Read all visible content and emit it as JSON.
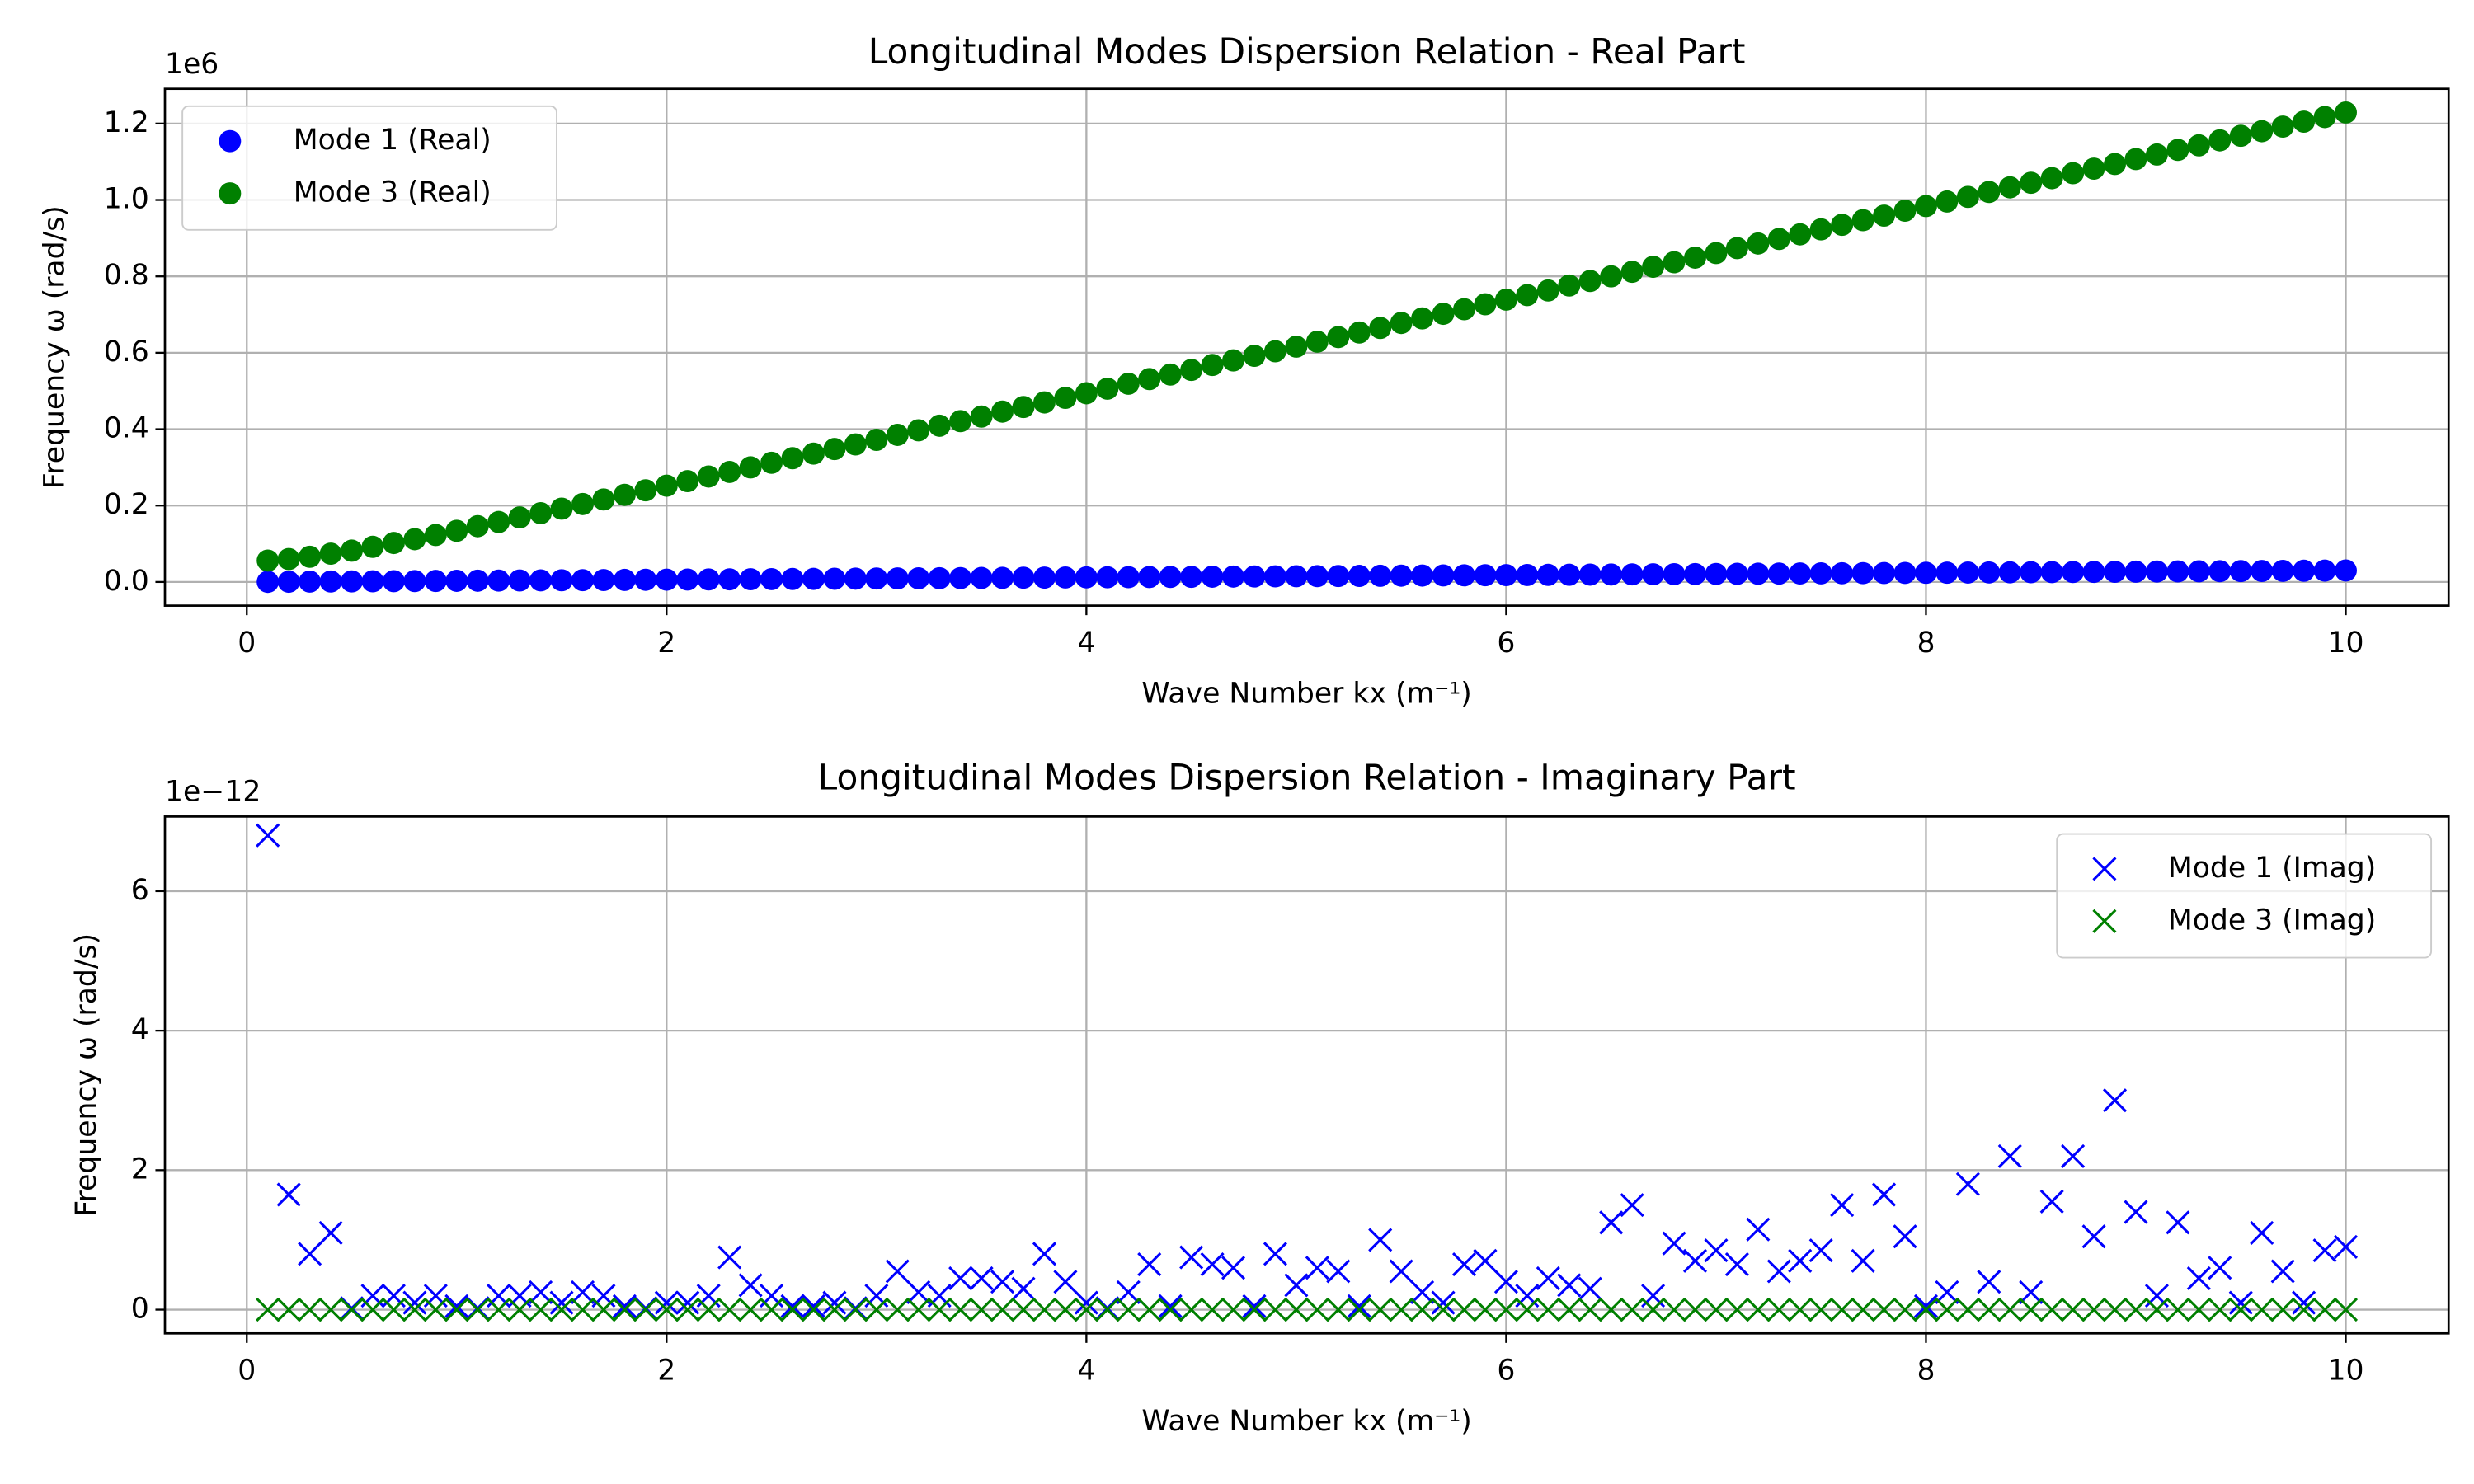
{
  "chart_data": [
    {
      "type": "scatter",
      "title": "Longitudinal Modes Dispersion Relation - Real Part",
      "x_label": "Wave Number kx (m⁻¹)",
      "y_label": "Frequency ω (rad/s)",
      "y_offset_label": "1e6",
      "xlim": [
        -0.39,
        10.49
      ],
      "ylim": [
        -0.062,
        1.291
      ],
      "xticks": [
        0,
        2,
        4,
        6,
        8,
        10
      ],
      "yticks": [
        {
          "value": 0,
          "label": "0.0"
        },
        0.2,
        0.4,
        0.6,
        0.8,
        {
          "value": 1,
          "label": "1.0"
        },
        1.2
      ],
      "grid": true,
      "legend": "upper left",
      "x": [
        0.1,
        0.2,
        0.3,
        0.4,
        0.5,
        0.6,
        0.7,
        0.8,
        0.9,
        1.0,
        1.1,
        1.2,
        1.3,
        1.4,
        1.5,
        1.6,
        1.7,
        1.8,
        1.9,
        2.0,
        2.1,
        2.2,
        2.3,
        2.4,
        2.5,
        2.6,
        2.7,
        2.8,
        2.9,
        3.0,
        3.1,
        3.2,
        3.3,
        3.4,
        3.5,
        3.6,
        3.7,
        3.8,
        3.9,
        4.0,
        4.1,
        4.2,
        4.3,
        4.4,
        4.5,
        4.6,
        4.7,
        4.8,
        4.9,
        5.0,
        5.1,
        5.2,
        5.3,
        5.4,
        5.5,
        5.6,
        5.7,
        5.8,
        5.9,
        6.0,
        6.1,
        6.2,
        6.3,
        6.4,
        6.5,
        6.6,
        6.7,
        6.8,
        6.9,
        7.0,
        7.1,
        7.2,
        7.3,
        7.4,
        7.5,
        7.6,
        7.7,
        7.8,
        7.9,
        8.0,
        8.1,
        8.2,
        8.3,
        8.4,
        8.5,
        8.6,
        8.7,
        8.8,
        8.9,
        9.0,
        9.1,
        9.2,
        9.3,
        9.4,
        9.5,
        9.6,
        9.7,
        9.8,
        9.9,
        10.0
      ],
      "series": [
        {
          "name": "Mode 1 (Real)",
          "color": "#0000ff",
          "marker": "o",
          "values": [
            0.0003,
            0.0006,
            0.0009,
            0.0012,
            0.0015,
            0.0018,
            0.0021,
            0.0024,
            0.0027,
            0.003,
            0.0033,
            0.0036,
            0.0039,
            0.0042,
            0.0045,
            0.0048,
            0.0051,
            0.0054,
            0.0057,
            0.006,
            0.0063,
            0.0066,
            0.0069,
            0.0072,
            0.0075,
            0.0078,
            0.0081,
            0.0084,
            0.0087,
            0.009,
            0.0093,
            0.0096,
            0.0099,
            0.0102,
            0.0105,
            0.0108,
            0.0111,
            0.0114,
            0.0117,
            0.012,
            0.0123,
            0.0126,
            0.0129,
            0.0132,
            0.0135,
            0.0138,
            0.0141,
            0.0144,
            0.0147,
            0.015,
            0.0153,
            0.0156,
            0.0159,
            0.0162,
            0.0165,
            0.0168,
            0.0171,
            0.0174,
            0.0177,
            0.018,
            0.0183,
            0.0186,
            0.0189,
            0.0192,
            0.0195,
            0.0198,
            0.0201,
            0.0204,
            0.0207,
            0.021,
            0.0213,
            0.0216,
            0.0219,
            0.0222,
            0.0225,
            0.0228,
            0.0231,
            0.0234,
            0.0237,
            0.024,
            0.0243,
            0.0246,
            0.0249,
            0.0252,
            0.0255,
            0.0258,
            0.0261,
            0.0264,
            0.0267,
            0.027,
            0.0273,
            0.0276,
            0.0279,
            0.0282,
            0.0285,
            0.0288,
            0.0291,
            0.0294,
            0.0297,
            0.03
          ]
        },
        {
          "name": "Mode 3 (Real)",
          "color": "#008000",
          "marker": "o",
          "values": [
            0.056,
            0.06,
            0.066,
            0.074,
            0.082,
            0.092,
            0.102,
            0.112,
            0.123,
            0.134,
            0.146,
            0.157,
            0.169,
            0.18,
            0.192,
            0.204,
            0.216,
            0.228,
            0.24,
            0.252,
            0.264,
            0.276,
            0.288,
            0.3,
            0.312,
            0.324,
            0.336,
            0.348,
            0.36,
            0.372,
            0.385,
            0.397,
            0.409,
            0.421,
            0.433,
            0.446,
            0.458,
            0.47,
            0.482,
            0.494,
            0.506,
            0.519,
            0.531,
            0.543,
            0.555,
            0.568,
            0.58,
            0.592,
            0.604,
            0.616,
            0.629,
            0.641,
            0.653,
            0.665,
            0.678,
            0.69,
            0.702,
            0.714,
            0.727,
            0.739,
            0.751,
            0.763,
            0.776,
            0.788,
            0.8,
            0.812,
            0.825,
            0.837,
            0.849,
            0.861,
            0.874,
            0.886,
            0.898,
            0.91,
            0.923,
            0.935,
            0.947,
            0.959,
            0.972,
            0.984,
            0.996,
            1.008,
            1.021,
            1.033,
            1.045,
            1.057,
            1.07,
            1.082,
            1.094,
            1.107,
            1.119,
            1.131,
            1.143,
            1.156,
            1.168,
            1.18,
            1.192,
            1.205,
            1.217,
            1.229
          ]
        }
      ]
    },
    {
      "type": "scatter",
      "title": "Longitudinal Modes Dispersion Relation - Imaginary Part",
      "x_label": "Wave Number kx (m⁻¹)",
      "y_label": "Frequency ω (rad/s)",
      "y_offset_label": "1e−12",
      "xlim": [
        -0.39,
        10.49
      ],
      "ylim": [
        -0.34,
        7.07
      ],
      "xticks": [
        0,
        2,
        4,
        6,
        8,
        10
      ],
      "yticks": [
        0,
        2,
        4,
        6
      ],
      "grid": true,
      "legend": "upper right",
      "x": [
        0.1,
        0.2,
        0.3,
        0.4,
        0.5,
        0.6,
        0.7,
        0.8,
        0.9,
        1.0,
        1.1,
        1.2,
        1.3,
        1.4,
        1.5,
        1.6,
        1.7,
        1.8,
        1.9,
        2.0,
        2.1,
        2.2,
        2.3,
        2.4,
        2.5,
        2.6,
        2.7,
        2.8,
        2.9,
        3.0,
        3.1,
        3.2,
        3.3,
        3.4,
        3.5,
        3.6,
        3.7,
        3.8,
        3.9,
        4.0,
        4.1,
        4.2,
        4.3,
        4.4,
        4.5,
        4.6,
        4.7,
        4.8,
        4.9,
        5.0,
        5.1,
        5.2,
        5.3,
        5.4,
        5.5,
        5.6,
        5.7,
        5.8,
        5.9,
        6.0,
        6.1,
        6.2,
        6.3,
        6.4,
        6.5,
        6.6,
        6.7,
        6.8,
        6.9,
        7.0,
        7.1,
        7.2,
        7.3,
        7.4,
        7.5,
        7.6,
        7.7,
        7.8,
        7.9,
        8.0,
        8.1,
        8.2,
        8.3,
        8.4,
        8.5,
        8.6,
        8.7,
        8.8,
        8.9,
        9.0,
        9.1,
        9.2,
        9.3,
        9.4,
        9.5,
        9.6,
        9.7,
        9.8,
        9.9,
        10.0
      ],
      "series": [
        {
          "name": "Mode 1 (Imag)",
          "color": "#0000ff",
          "marker": "x",
          "values": [
            6.8,
            1.65,
            0.8,
            1.1,
            0.02,
            0.2,
            0.2,
            0.1,
            0.2,
            0.05,
            0.02,
            0.2,
            0.2,
            0.25,
            0.1,
            0.25,
            0.2,
            0.05,
            0.02,
            0.1,
            0.1,
            0.2,
            0.75,
            0.35,
            0.2,
            0.05,
            0.05,
            0.1,
            0.02,
            0.2,
            0.55,
            0.25,
            0.2,
            0.45,
            0.45,
            0.4,
            0.3,
            0.8,
            0.4,
            0.1,
            0.02,
            0.25,
            0.65,
            0.05,
            0.75,
            0.65,
            0.6,
            0.05,
            0.8,
            0.35,
            0.6,
            0.55,
            0.05,
            1.0,
            0.55,
            0.25,
            0.1,
            0.65,
            0.7,
            0.4,
            0.2,
            0.45,
            0.35,
            0.3,
            1.25,
            1.5,
            0.2,
            0.95,
            0.7,
            0.85,
            0.65,
            1.15,
            0.55,
            0.7,
            0.85,
            1.5,
            0.7,
            1.65,
            1.05,
            0.05,
            0.25,
            1.8,
            0.4,
            2.2,
            0.25,
            1.55,
            2.2,
            1.05,
            3.0,
            1.4,
            0.2,
            1.25,
            0.45,
            0.6,
            0.1,
            1.1,
            0.55,
            0.1,
            0.85,
            0.9
          ]
        },
        {
          "name": "Mode 3 (Imag)",
          "color": "#008000",
          "marker": "x",
          "values": [
            0,
            0,
            0,
            0,
            0,
            0,
            0,
            0,
            0,
            0,
            0,
            0,
            0,
            0,
            0,
            0,
            0,
            0,
            0,
            0,
            0,
            0,
            0,
            0,
            0,
            0,
            0,
            0,
            0,
            0,
            0,
            0,
            0,
            0,
            0,
            0,
            0,
            0,
            0,
            0,
            0,
            0,
            0,
            0,
            0,
            0,
            0,
            0,
            0,
            0,
            0,
            0,
            0,
            0,
            0,
            0,
            0,
            0,
            0,
            0,
            0,
            0,
            0,
            0,
            0,
            0,
            0,
            0,
            0,
            0,
            0,
            0,
            0,
            0,
            0,
            0,
            0,
            0,
            0,
            0,
            0,
            0,
            0,
            0,
            0,
            0,
            0,
            0,
            0,
            0,
            0,
            0,
            0,
            0,
            0,
            0,
            0,
            0,
            0,
            0
          ]
        }
      ]
    }
  ]
}
